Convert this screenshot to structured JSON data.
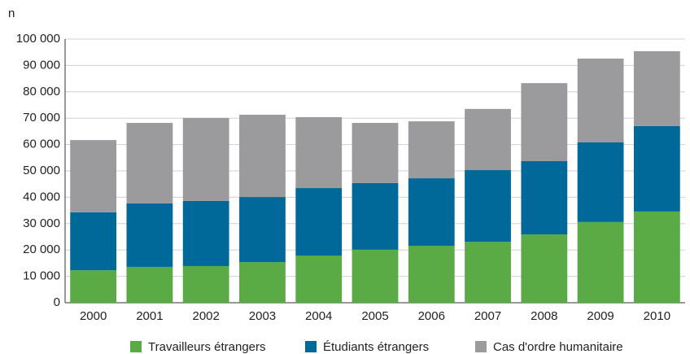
{
  "chart_data": {
    "type": "stacked_bar",
    "y_label": "n",
    "categories": [
      "2000",
      "2001",
      "2002",
      "2003",
      "2004",
      "2005",
      "2006",
      "2007",
      "2008",
      "2009",
      "2010"
    ],
    "series": [
      {
        "name": "Travailleurs étrangers",
        "color": "#5aaa46",
        "values": [
          12300,
          13600,
          13900,
          15400,
          17900,
          20100,
          21600,
          23100,
          25900,
          30600,
          34600
        ]
      },
      {
        "name": "Étudiants étrangers",
        "color": "#00699a",
        "values": [
          22000,
          24100,
          24700,
          24700,
          25600,
          25300,
          25600,
          27200,
          27800,
          30200,
          32400
        ]
      },
      {
        "name": "Cas d'ordre humanitaire",
        "color": "#9b9b9d",
        "values": [
          27400,
          30500,
          31500,
          31200,
          26900,
          22800,
          21600,
          23200,
          29600,
          31800,
          28400
        ]
      }
    ],
    "ylim": [
      0,
      100000
    ],
    "yticks": [
      0,
      {
        "value": 10000,
        "label": "10 000"
      },
      {
        "value": 20000,
        "label": "20 000"
      },
      {
        "value": 30000,
        "label": "30 000"
      },
      {
        "value": 40000,
        "label": "40 000"
      },
      {
        "value": 50000,
        "label": "50 000"
      },
      {
        "value": 60000,
        "label": "60 000"
      },
      {
        "value": 70000,
        "label": "70 000"
      },
      {
        "value": 80000,
        "label": "80 000"
      },
      {
        "value": 90000,
        "label": "90 000"
      },
      {
        "value": 100000,
        "label": "100 000"
      }
    ],
    "grid": true,
    "legend": "bottom"
  }
}
